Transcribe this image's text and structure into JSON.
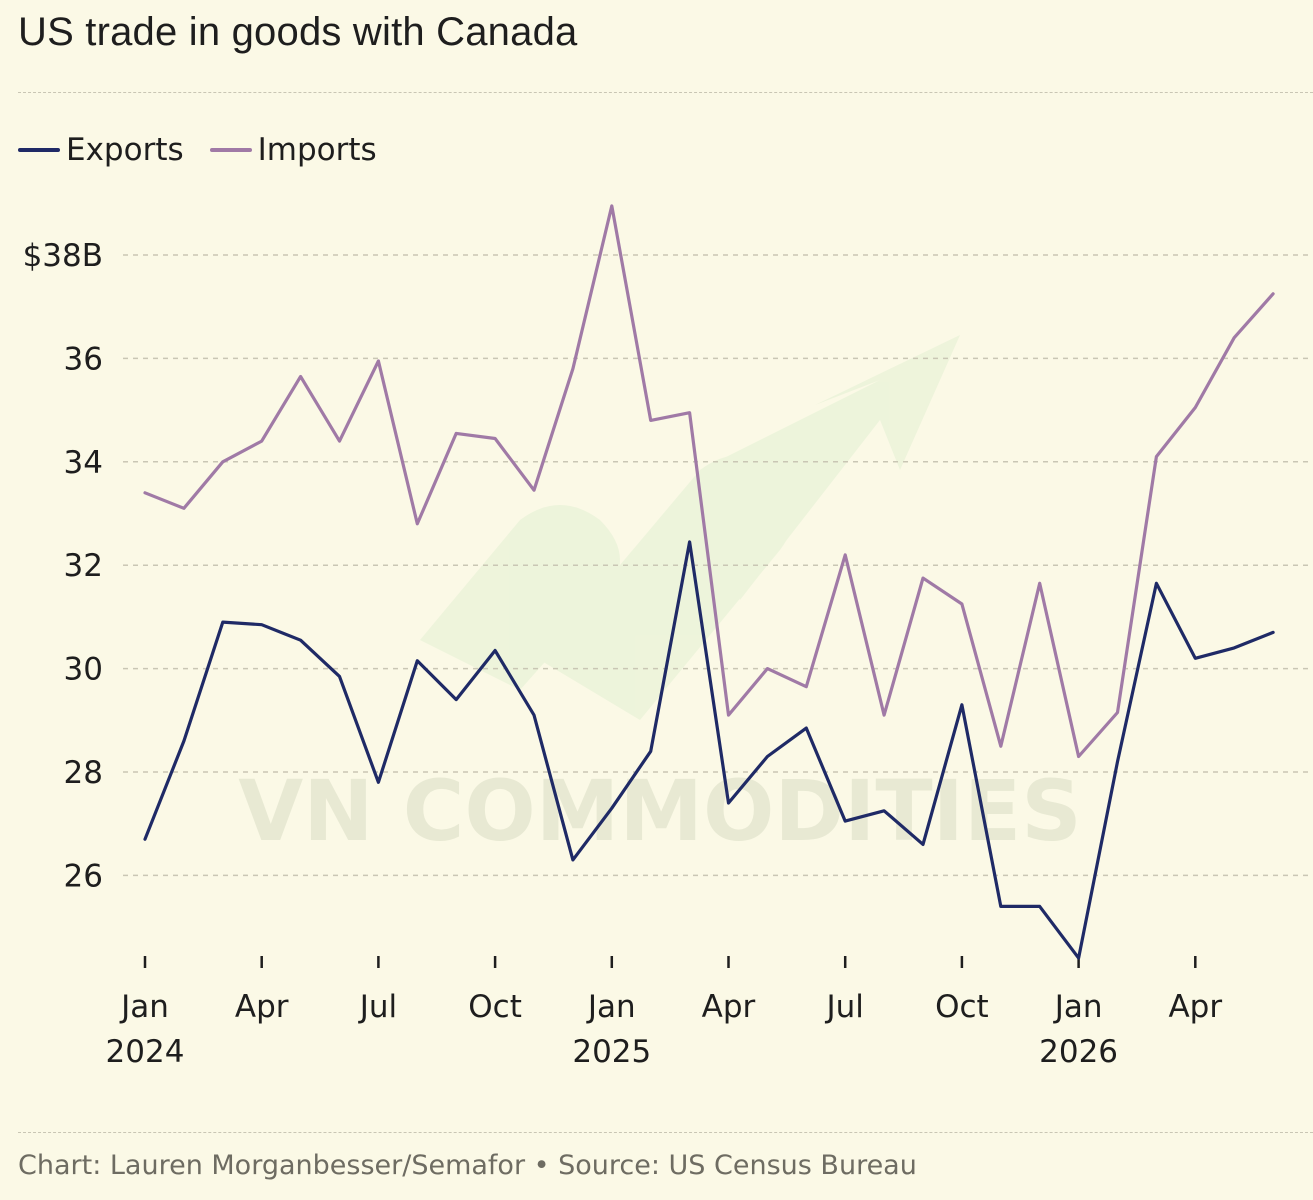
{
  "title": "US trade in goods with Canada",
  "footer": "Chart: Lauren Morganbesser/Semafor • Source: US Census Bureau",
  "watermark": "VN COMMODITIES",
  "colors": {
    "background": "#fbf9e6",
    "exports": "#1f2a66",
    "imports": "#a07aa6",
    "grid": "#c9c6b4",
    "text": "#1e1e1e"
  },
  "legend": [
    {
      "name": "Exports",
      "color": "#1f2a66"
    },
    {
      "name": "Imports",
      "color": "#a07aa6"
    }
  ],
  "chart_data": {
    "type": "line",
    "title": "US trade in goods with Canada",
    "xlabel": "",
    "ylabel": "",
    "ylim": [
      24.6,
      39.2
    ],
    "y_ticks": [
      26,
      28,
      30,
      32,
      34,
      36,
      38
    ],
    "y_tick_labels": [
      "26",
      "28",
      "30",
      "32",
      "34",
      "36",
      "$38B"
    ],
    "x_ticks": [
      {
        "month_index": 0,
        "label": "Jan",
        "year": "2024"
      },
      {
        "month_index": 3,
        "label": "Apr",
        "year": ""
      },
      {
        "month_index": 6,
        "label": "Jul",
        "year": ""
      },
      {
        "month_index": 9,
        "label": "Oct",
        "year": ""
      },
      {
        "month_index": 12,
        "label": "Jan",
        "year": "2025"
      },
      {
        "month_index": 15,
        "label": "Apr",
        "year": ""
      },
      {
        "month_index": 18,
        "label": "Jul",
        "year": ""
      },
      {
        "month_index": 21,
        "label": "Oct",
        "year": ""
      },
      {
        "month_index": 24,
        "label": "Jan",
        "year": "2026"
      },
      {
        "month_index": 27,
        "label": "Apr",
        "year": ""
      }
    ],
    "x": [
      "2024-01",
      "2024-02",
      "2024-03",
      "2024-04",
      "2024-05",
      "2024-06",
      "2024-07",
      "2024-08",
      "2024-09",
      "2024-10",
      "2024-11",
      "2024-12",
      "2025-01",
      "2025-02",
      "2025-03",
      "2025-04",
      "2025-05",
      "2025-06",
      "2025-07",
      "2025-08",
      "2025-09",
      "2025-10",
      "2025-11",
      "2025-12",
      "2026-01",
      "2026-02",
      "2026-03",
      "2026-04",
      "2026-05",
      "2026-06"
    ],
    "series": [
      {
        "name": "Exports",
        "values": [
          26.7,
          28.6,
          30.9,
          30.85,
          30.55,
          29.85,
          27.8,
          30.15,
          29.4,
          30.35,
          29.1,
          26.3,
          27.3,
          28.4,
          32.45,
          27.4,
          28.3,
          28.85,
          27.05,
          27.25,
          26.6,
          29.3,
          25.4,
          25.4,
          24.4,
          28.2,
          31.65,
          30.2,
          30.4,
          30.7
        ],
        "color": "#1f2a66"
      },
      {
        "name": "Imports",
        "values": [
          33.4,
          33.1,
          34.0,
          34.4,
          35.65,
          34.4,
          35.95,
          32.8,
          34.55,
          34.45,
          33.45,
          35.8,
          38.95,
          34.8,
          34.95,
          29.1,
          30.0,
          29.65,
          32.2,
          29.1,
          31.75,
          31.25,
          28.5,
          31.65,
          28.3,
          29.15,
          34.1,
          35.05,
          36.4,
          37.25
        ],
        "color": "#a07aa6"
      }
    ],
    "grid": true,
    "legend_position": "top-left"
  }
}
